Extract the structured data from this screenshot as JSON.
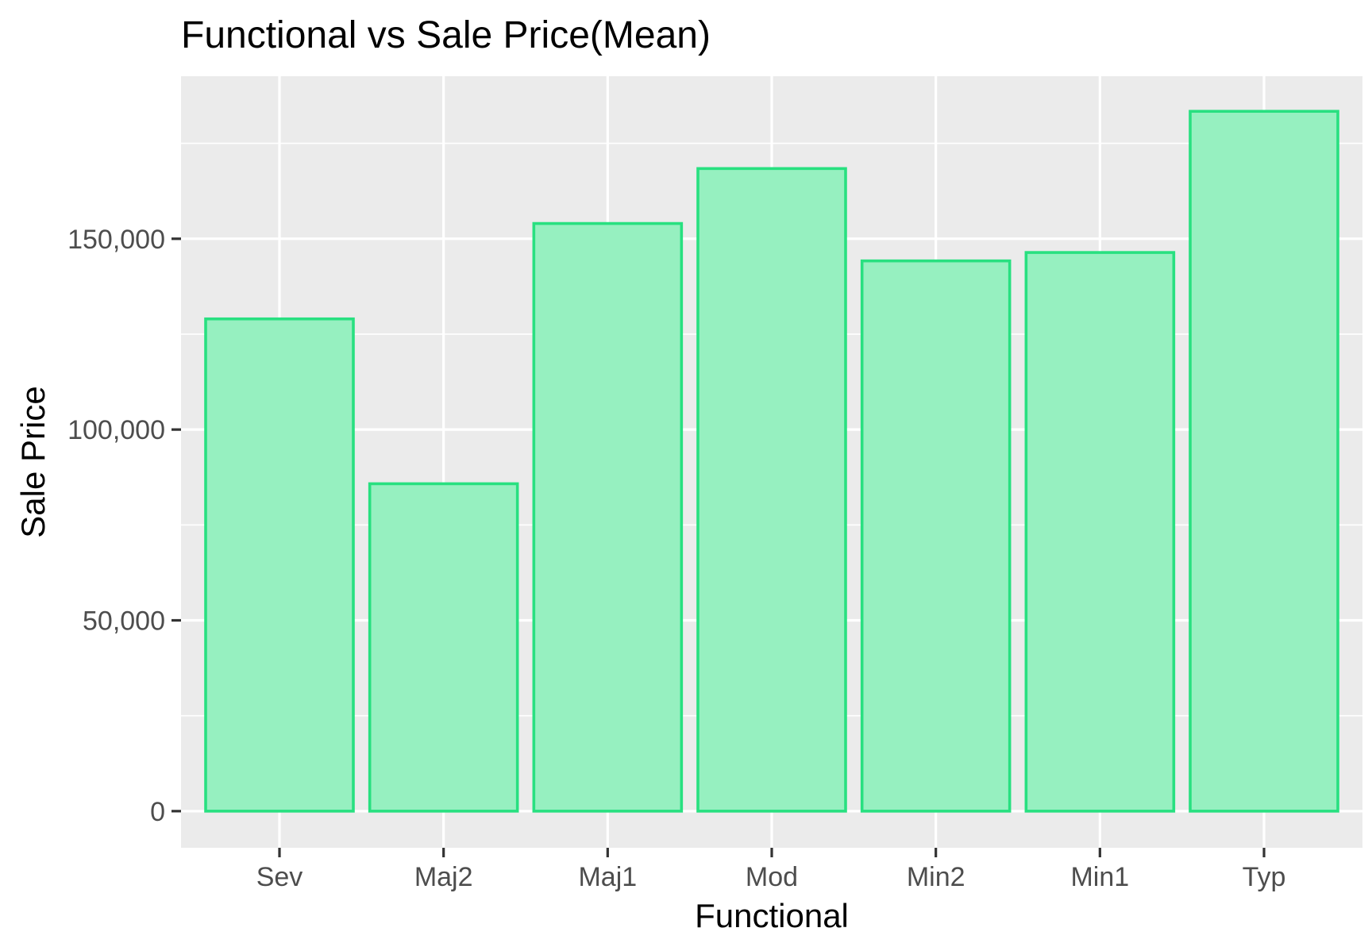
{
  "chart_data": {
    "type": "bar",
    "title": "Functional vs Sale Price(Mean)",
    "xlabel": "Functional",
    "ylabel": "Sale Price",
    "categories": [
      "Sev",
      "Maj2",
      "Maj1",
      "Mod",
      "Min2",
      "Min1",
      "Typ"
    ],
    "values": [
      129000,
      85800,
      154000,
      168400,
      144200,
      146400,
      183400
    ],
    "ylim": [
      -9600,
      192600
    ],
    "y_ticks": [
      0,
      50000,
      100000,
      150000
    ],
    "y_tick_labels": [
      "0",
      "50,000",
      "100,000",
      "150,000"
    ],
    "grid": true,
    "legend": "none",
    "colors": {
      "panel_background": "#ebebeb",
      "grid_line": "#ffffff",
      "bar_fill": "#96f0c0",
      "bar_stroke": "#28e080",
      "tick_mark": "#333333"
    }
  }
}
